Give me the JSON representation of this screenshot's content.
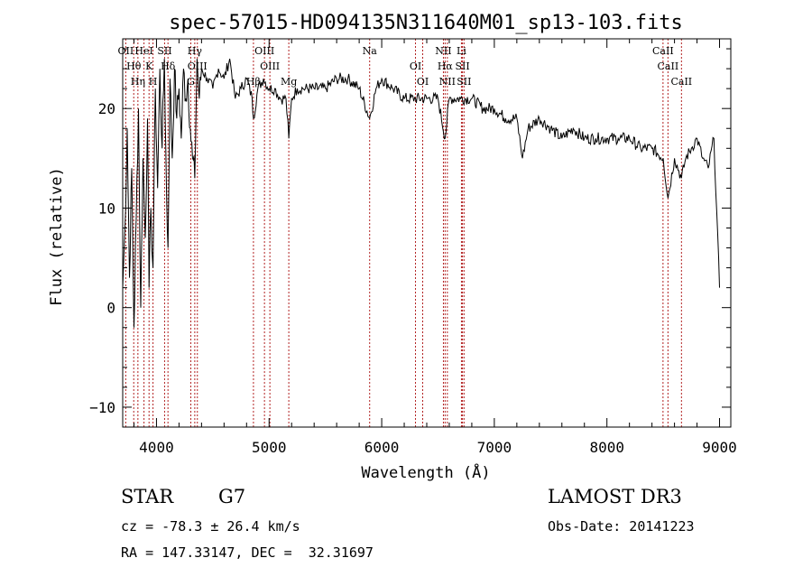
{
  "chart_data": {
    "type": "line",
    "title": "spec-57015-HD094135N311640M01_sp13-103.fits",
    "xlabel": "Wavelength (Å)",
    "ylabel": "Flux (relative)",
    "xlim": [
      3700,
      9100
    ],
    "ylim": [
      -12,
      27
    ],
    "x_ticks": [
      4000,
      5000,
      6000,
      7000,
      8000,
      9000
    ],
    "y_ticks": [
      -10,
      0,
      10,
      20
    ],
    "series": [
      {
        "name": "flux",
        "x": [
          3700,
          3720,
          3740,
          3760,
          3780,
          3800,
          3820,
          3840,
          3860,
          3880,
          3900,
          3920,
          3934,
          3950,
          3969,
          3990,
          4010,
          4030,
          4050,
          4070,
          4090,
          4102,
          4120,
          4140,
          4160,
          4180,
          4200,
          4220,
          4240,
          4260,
          4280,
          4300,
          4320,
          4340,
          4360,
          4380,
          4400,
          4450,
          4500,
          4550,
          4600,
          4650,
          4700,
          4750,
          4800,
          4850,
          4861,
          4900,
          4950,
          5000,
          5050,
          5100,
          5150,
          5175,
          5200,
          5250,
          5300,
          5400,
          5500,
          5600,
          5700,
          5800,
          5893,
          5950,
          6000,
          6100,
          6200,
          6300,
          6400,
          6500,
          6563,
          6600,
          6700,
          6800,
          6900,
          7000,
          7100,
          7200,
          7250,
          7300,
          7400,
          7500,
          7600,
          7700,
          7800,
          7900,
          8000,
          8100,
          8200,
          8300,
          8400,
          8500,
          8542,
          8600,
          8662,
          8700,
          8750,
          8800,
          8850,
          8900,
          8950,
          9000
        ],
        "y": [
          2,
          8,
          18,
          3,
          14,
          -2,
          9,
          20,
          0,
          15,
          7,
          19,
          2,
          10,
          4,
          22,
          12,
          24,
          16,
          25,
          11,
          6,
          23,
          15,
          24,
          19,
          22,
          17,
          24,
          21,
          23,
          18,
          15,
          13,
          25,
          21,
          24,
          23,
          22,
          24,
          23,
          25,
          21,
          22,
          23,
          21,
          19,
          22,
          23,
          22,
          22,
          21,
          21,
          17,
          21,
          22,
          22,
          22,
          22,
          23,
          23,
          22,
          19,
          22,
          23,
          22,
          21,
          21,
          21,
          21,
          17,
          21,
          21,
          21,
          20,
          20,
          19,
          19,
          15,
          18,
          19,
          18,
          17,
          18,
          17,
          17,
          17,
          17,
          17,
          16,
          16,
          15,
          11,
          15,
          13,
          15,
          16,
          17,
          15,
          14,
          17,
          2
        ]
      }
    ],
    "lines": [
      {
        "label": "OII",
        "wl": 3727
      },
      {
        "label": "Hθ",
        "wl": 3798
      },
      {
        "label": "Hη",
        "wl": 3835
      },
      {
        "label": "HeI",
        "wl": 3889
      },
      {
        "label": "K",
        "wl": 3934
      },
      {
        "label": "H",
        "wl": 3969
      },
      {
        "label": "SII",
        "wl": 4072
      },
      {
        "label": "Hδ",
        "wl": 4102
      },
      {
        "label": "G",
        "wl": 4305
      },
      {
        "label": "Hγ",
        "wl": 4340
      },
      {
        "label": "OIII",
        "wl": 4363
      },
      {
        "label": "Hβ",
        "wl": 4861
      },
      {
        "label": "OIII",
        "wl": 4959
      },
      {
        "label": "OIII",
        "wl": 5007
      },
      {
        "label": "Mg",
        "wl": 5175
      },
      {
        "label": "Na",
        "wl": 5893
      },
      {
        "label": "OI",
        "wl": 6300
      },
      {
        "label": "OI",
        "wl": 6364
      },
      {
        "label": "NII",
        "wl": 6548
      },
      {
        "label": "Hα",
        "wl": 6563
      },
      {
        "label": "NII",
        "wl": 6583
      },
      {
        "label": "Li",
        "wl": 6708
      },
      {
        "label": "SII",
        "wl": 6717
      },
      {
        "label": "SII",
        "wl": 6731
      },
      {
        "label": "CaII",
        "wl": 8498
      },
      {
        "label": "CaII",
        "wl": 8542
      },
      {
        "label": "CaII",
        "wl": 8662
      }
    ]
  },
  "info": {
    "object_class": "STAR",
    "subclass": "G7",
    "survey": "LAMOST DR3",
    "redshift": "cz = -78.3 ± 26.4 km/s",
    "obs_date": "Obs-Date: 20141223",
    "coords": "RA = 147.33147, DEC =  32.31697"
  },
  "colors": {
    "line_marker": "#b22222",
    "spectrum": "#000000",
    "axes": "#000000"
  }
}
